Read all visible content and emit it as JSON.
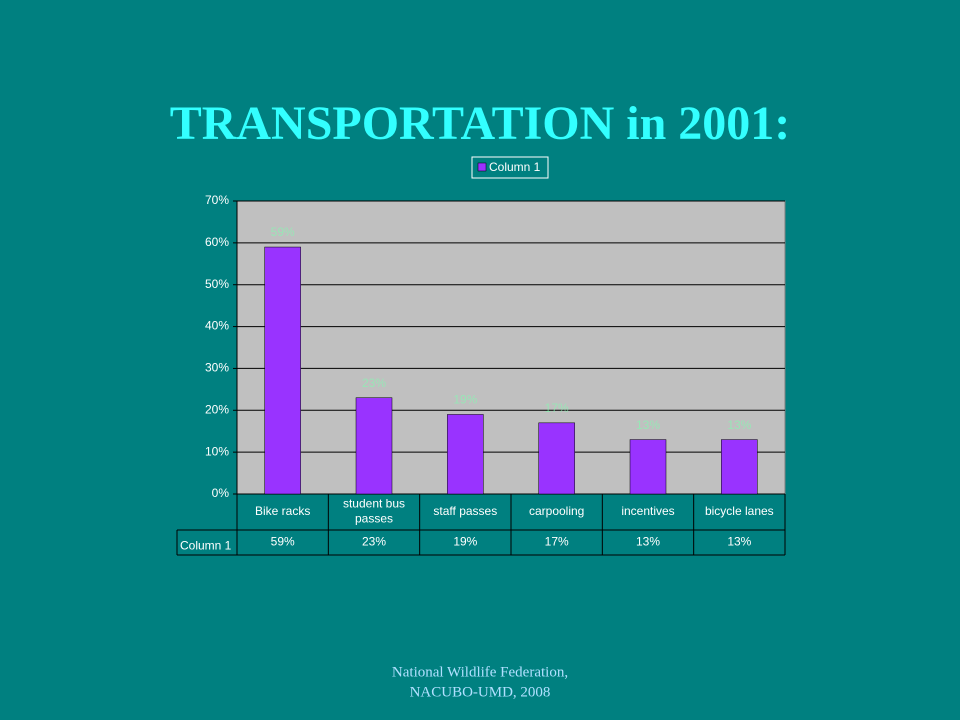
{
  "chart_data": {
    "type": "bar",
    "title": "TRANSPORTATION in 2001:",
    "categories": [
      "Bike racks",
      "student bus passes",
      "staff passes",
      "carpooling",
      "incentives",
      "bicycle lanes"
    ],
    "series": [
      {
        "name": "Column 1",
        "color": "#9933ff",
        "values": [
          59,
          23,
          19,
          17,
          13,
          13
        ],
        "value_labels": [
          "59%",
          "23%",
          "19%",
          "17%",
          "13%",
          "13%"
        ]
      }
    ],
    "ylim": [
      0,
      70
    ],
    "yticks": [
      {
        "value": 0,
        "label": "0%"
      },
      {
        "value": 10,
        "label": "10%"
      },
      {
        "value": 20,
        "label": "20%"
      },
      {
        "value": 30,
        "label": "30%"
      },
      {
        "value": 40,
        "label": "40%"
      },
      {
        "value": 50,
        "label": "50%"
      },
      {
        "value": 60,
        "label": "60%"
      },
      {
        "value": 70,
        "label": "70%"
      }
    ],
    "grid": true,
    "legend": "top",
    "plot_background": "#c0c0c0"
  },
  "footer": [
    "National Wildlife Federation,",
    "NACUBO-UMD, 2008"
  ]
}
